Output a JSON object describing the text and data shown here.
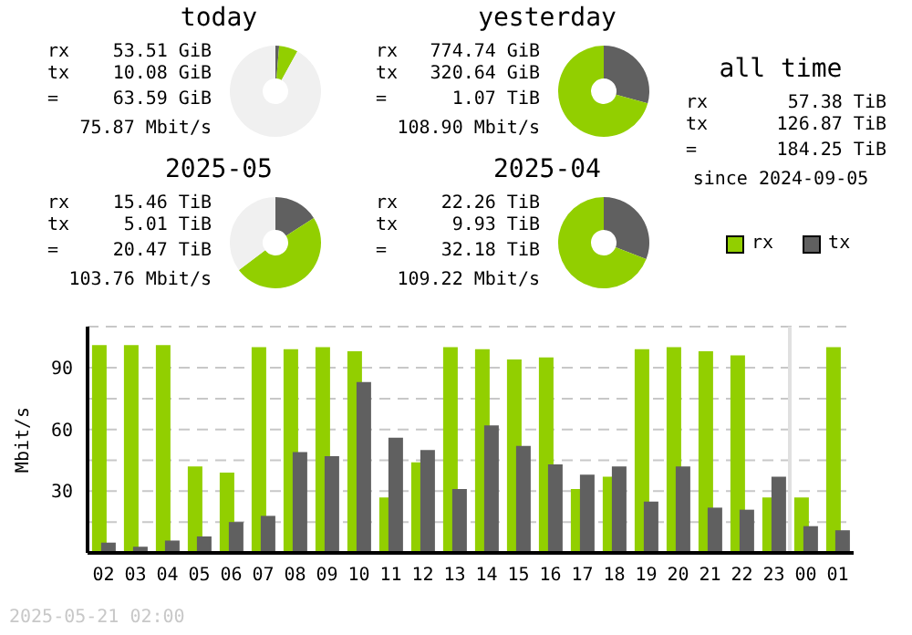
{
  "chart_data": [
    {
      "type": "donut",
      "title": "today",
      "categories": [
        null,
        null,
        null
      ],
      "values": [
        1.3,
        6.7,
        92
      ],
      "colors": [
        "#606060",
        "#92cf00",
        "#f0f0f0"
      ],
      "annotations": [
        "rx",
        "53.51 GiB",
        "tx",
        "10.08 GiB",
        "=",
        "63.59 GiB",
        "75.87 Mbit/s"
      ]
    },
    {
      "type": "donut",
      "title": "yesterday",
      "categories": [
        null,
        null
      ],
      "values": [
        29.3,
        70.7
      ],
      "colors": [
        "#606060",
        "#92cf00"
      ],
      "annotations": [
        "rx",
        "774.74 GiB",
        "tx",
        "320.64 GiB",
        "=",
        "1.07 TiB",
        "108.90 Mbit/s"
      ]
    },
    {
      "type": "other",
      "title": "all time",
      "annotations": [
        "rx",
        "57.38 TiB",
        "tx",
        "126.87 TiB",
        "=",
        "184.25 TiB",
        "since 2024-09-05"
      ]
    },
    {
      "type": "donut",
      "title": "2025-05",
      "categories": [
        null,
        null,
        null
      ],
      "values": [
        15.9,
        48.9,
        35.2
      ],
      "colors": [
        "#606060",
        "#92cf00",
        "#f0f0f0"
      ],
      "annotations": [
        "rx",
        "15.46 TiB",
        "tx",
        "5.01 TiB",
        "=",
        "20.47 TiB",
        "103.76 Mbit/s"
      ]
    },
    {
      "type": "donut",
      "title": "2025-04",
      "categories": [
        null,
        null
      ],
      "values": [
        30.9,
        69.1
      ],
      "colors": [
        "#606060",
        "#92cf00"
      ],
      "annotations": [
        "rx",
        "22.26 TiB",
        "tx",
        "9.93 TiB",
        "=",
        "32.18 TiB",
        "109.22 Mbit/s"
      ]
    },
    {
      "type": "bar",
      "ylabel": "Mbit/s",
      "categories": [
        "02",
        "03",
        "04",
        "05",
        "06",
        "07",
        "08",
        "09",
        "10",
        "11",
        "12",
        "13",
        "14",
        "15",
        "16",
        "17",
        "18",
        "19",
        "20",
        "21",
        "22",
        "23",
        "00",
        "01"
      ],
      "series": [
        {
          "name": "rx",
          "color": "#92cf00",
          "values": [
            101,
            101,
            101,
            42,
            39,
            100,
            99,
            100,
            98,
            27,
            44,
            100,
            99,
            94,
            95,
            31,
            37,
            99,
            100,
            98,
            96,
            27,
            27,
            100
          ]
        },
        {
          "name": "tx",
          "color": "#606060",
          "values": [
            5,
            3,
            6,
            8,
            15,
            18,
            49,
            47,
            83,
            56,
            50,
            31,
            62,
            52,
            43,
            38,
            42,
            25,
            42,
            22,
            21,
            37,
            13,
            11
          ]
        }
      ],
      "ylim": [
        0,
        110
      ],
      "yticks": [
        {
          "value": 15,
          "label": null
        },
        30,
        {
          "value": 45,
          "label": null
        },
        60,
        {
          "value": 75,
          "label": null
        },
        90
      ],
      "grid": "y",
      "legend": "top right",
      "ref_lines": [
        {
          "axis": "x",
          "value": "00",
          "color": "#e0e0e0"
        }
      ],
      "annotations": [
        "2025-05-21 02:00"
      ]
    }
  ]
}
